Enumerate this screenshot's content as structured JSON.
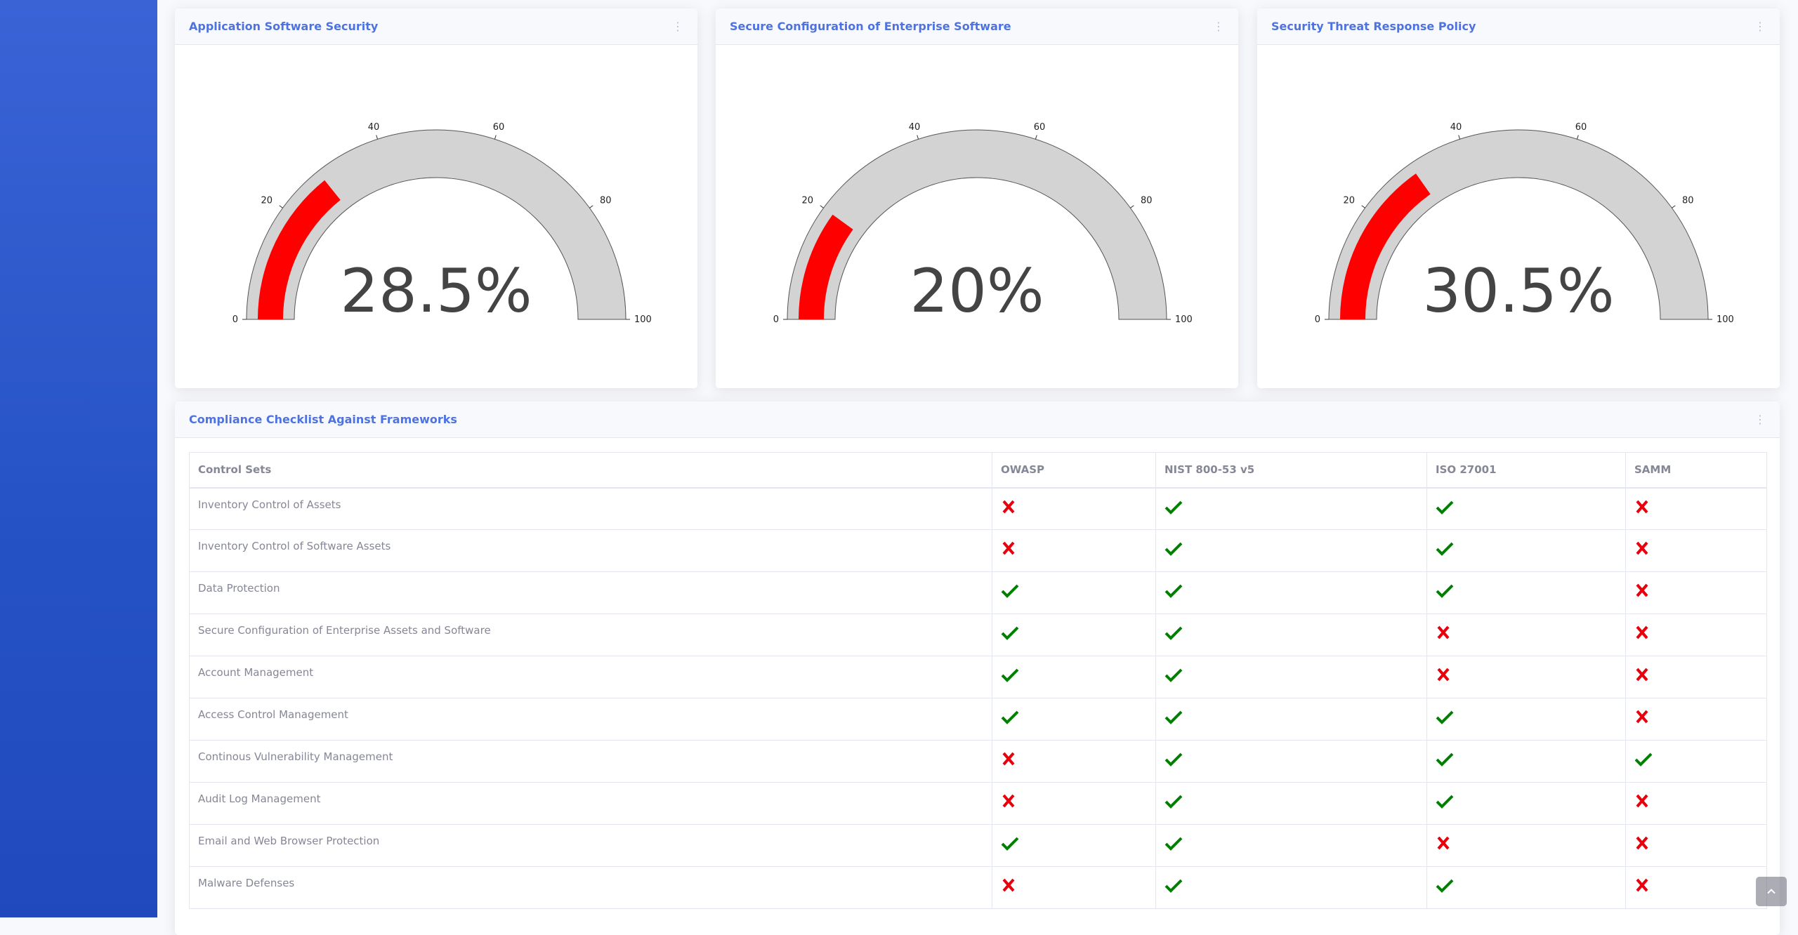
{
  "gauges": [
    {
      "title": "Application Software Security",
      "value": 28.5,
      "value_label": "28.5%",
      "min": 0,
      "max": 100,
      "ticks": [
        0,
        20,
        40,
        60,
        80,
        100
      ]
    },
    {
      "title": "Secure Configuration of Enterprise Software",
      "value": 20,
      "value_label": "20%",
      "min": 0,
      "max": 100,
      "ticks": [
        0,
        20,
        40,
        60,
        80,
        100
      ]
    },
    {
      "title": "Security Threat Response Policy",
      "value": 30.5,
      "value_label": "30.5%",
      "min": 0,
      "max": 100,
      "ticks": [
        0,
        20,
        40,
        60,
        80,
        100
      ]
    }
  ],
  "colors": {
    "accent": "#4e73df",
    "gauge_fill": "#ff0000",
    "gauge_track": "#d3d3d3",
    "check": "#008000",
    "cross": "#e8000b"
  },
  "compliance": {
    "title": "Compliance Checklist Against Frameworks",
    "columns": [
      "Control Sets",
      "OWASP",
      "NIST 800-53 v5",
      "ISO 27001",
      "SAMM"
    ],
    "rows": [
      {
        "name": "Inventory Control of Assets",
        "marks": [
          false,
          true,
          true,
          false
        ]
      },
      {
        "name": "Inventory Control of Software Assets",
        "marks": [
          false,
          true,
          true,
          false
        ]
      },
      {
        "name": "Data Protection",
        "marks": [
          true,
          true,
          true,
          false
        ]
      },
      {
        "name": "Secure Configuration of Enterprise Assets and Software",
        "marks": [
          true,
          true,
          false,
          false
        ]
      },
      {
        "name": "Account Management",
        "marks": [
          true,
          true,
          false,
          false
        ]
      },
      {
        "name": "Access Control Management",
        "marks": [
          true,
          true,
          true,
          false
        ]
      },
      {
        "name": "Continous Vulnerability Management",
        "marks": [
          false,
          true,
          true,
          true
        ]
      },
      {
        "name": "Audit Log Management",
        "marks": [
          false,
          true,
          true,
          false
        ]
      },
      {
        "name": "Email and Web Browser Protection",
        "marks": [
          true,
          true,
          false,
          false
        ]
      },
      {
        "name": "Malware Defenses",
        "marks": [
          false,
          true,
          true,
          false
        ]
      }
    ]
  },
  "icons": {
    "menu": "vertical-ellipsis-icon",
    "pass": "check-icon",
    "fail": "cross-icon",
    "scroll_top": "chevron-up-icon"
  }
}
